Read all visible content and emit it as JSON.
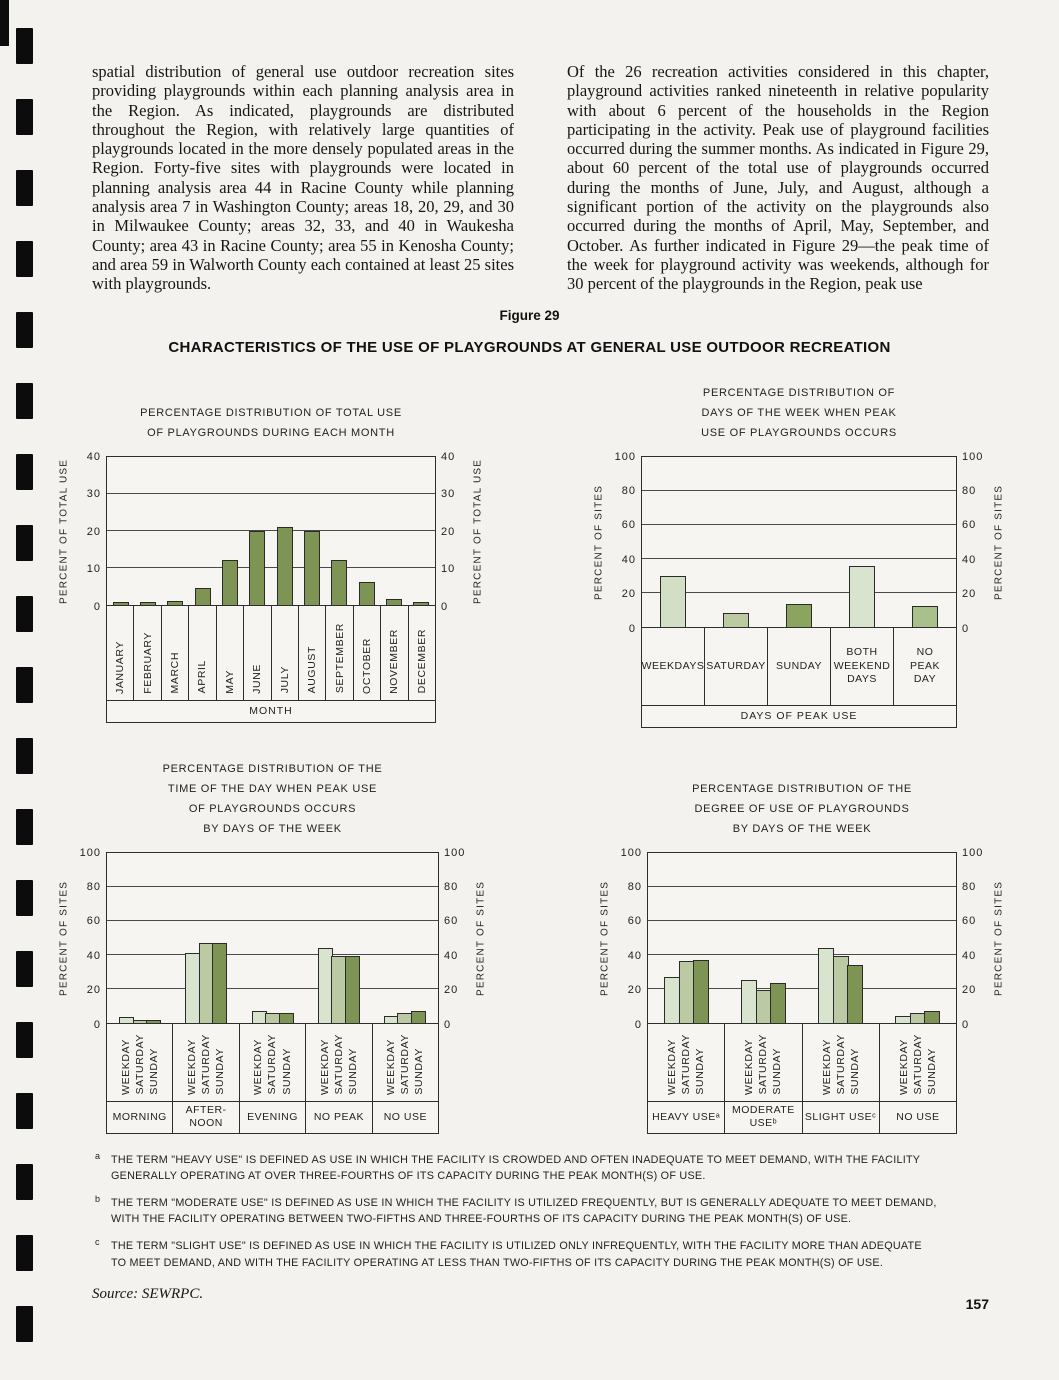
{
  "page": {
    "columns": {
      "left": "spatial distribution of general use outdoor recreation sites providing playgrounds within each planning analysis area in the Region. As indicated, playgrounds are distributed throughout the Region, with relatively large quantities of playgrounds located in the more densely populated areas in the Region. Forty-five sites with playgrounds were located in planning analysis area 44 in Racine County while planning analysis area 7 in Washington County; areas 18, 20, 29, and 30 in Milwaukee County; areas 32, 33, and 40 in Waukesha County; area 43 in Racine County; area 55 in Kenosha County; and area 59 in Walworth County each contained at least 25 sites with playgrounds.",
      "right": "Of the 26 recreation activities considered in this chapter, playground activities ranked nineteenth in relative popularity with about 6 percent of the households in the Region participating in the activity. Peak use of playground facilities occurred during the summer months. As indicated in Figure 29, about 60 percent of the total use of playgrounds occurred during the months of June, July, and August, although a significant portion of the activity on the playgrounds also occurred during the months of April, May, September, and October. As further indicated in Figure 29—the peak time of the week for playground activity was weekends, although for 30 percent of the playgrounds in the Region, peak use"
    },
    "figure_label": "Figure 29",
    "figure_title": "CHARACTERISTICS OF THE USE OF PLAYGROUNDS AT GENERAL USE OUTDOOR RECREATION",
    "footnotes": [
      {
        "marker": "a",
        "text": "THE TERM \"HEAVY USE\" IS DEFINED AS USE IN WHICH THE FACILITY IS CROWDED AND OFTEN INADEQUATE TO MEET DEMAND, WITH THE FACILITY GENERALLY OPERATING AT OVER THREE-FOURTHS OF ITS CAPACITY DURING THE PEAK MONTH(S) OF USE."
      },
      {
        "marker": "b",
        "text": "THE TERM \"MODERATE USE\" IS DEFINED AS USE IN WHICH THE FACILITY IS UTILIZED FREQUENTLY, BUT IS GENERALLY ADEQUATE TO MEET DEMAND, WITH THE FACILITY OPERATING BETWEEN TWO-FIFTHS AND THREE-FOURTHS OF ITS CAPACITY DURING THE PEAK MONTH(S) OF USE."
      },
      {
        "marker": "c",
        "text": "THE TERM \"SLIGHT USE\" IS DEFINED AS USE IN WHICH THE FACILITY IS UTILIZED ONLY INFREQUENTLY, WITH THE FACILITY MORE THAN ADEQUATE TO MEET DEMAND, AND WITH THE FACILITY OPERATING AT LESS THAN TWO-FIFTHS OF ITS CAPACITY DURING THE PEAK MONTH(S) OF USE."
      }
    ],
    "source": "Source: SEWRPC.",
    "page_number": "157"
  },
  "colors": {
    "page_background": "#f3f2ee",
    "bar_dark_green": "#7d9454",
    "bar_medium_green": "#bccaa4",
    "bar_light_green": "#d9e4cf",
    "axis_ink": "#2e2e2e"
  },
  "chart_data": [
    {
      "type": "bar",
      "title": "PERCENTAGE DISTRIBUTION OF TOTAL USE\nOF PLAYGROUNDS DURING EACH MONTH",
      "categories": [
        "JANUARY",
        "FEBRUARY",
        "MARCH",
        "APRIL",
        "MAY",
        "JUNE",
        "JULY",
        "AUGUST",
        "SEPTEMBER",
        "OCTOBER",
        "NOVEMBER",
        "DECEMBER"
      ],
      "values": [
        0.5,
        0.5,
        1,
        4.5,
        12,
        20,
        21,
        20,
        12,
        6,
        1.5,
        0.5
      ],
      "bar_color": "#7d9454",
      "ylabel": "PERCENT OF TOTAL USE",
      "xlabel": "MONTH",
      "ylim": [
        0,
        40
      ],
      "ytick": 10,
      "rotate_xlabels": true,
      "grid": true,
      "legend_position": "none"
    },
    {
      "type": "bar",
      "title": "PERCENTAGE DISTRIBUTION OF\nDAYS OF THE WEEK WHEN PEAK\nUSE OF PLAYGROUNDS OCCURS",
      "categories": [
        "WEEKDAYS",
        "SATURDAY",
        "SUNDAY",
        "BOTH\nWEEKEND\nDAYS",
        "NO\nPEAK\nDAY"
      ],
      "values": [
        30,
        8,
        13.5,
        35.5,
        12
      ],
      "bar_colors": [
        "#d3dfc4",
        "#bccaa4",
        "#89a55e",
        "#d9e4cf",
        "#a9bf8c"
      ],
      "ylabel": "PERCENT OF SITES",
      "xlabel": "DAYS OF PEAK USE",
      "ylim": [
        0,
        100
      ],
      "ytick": 20,
      "rotate_xlabels": false,
      "grid": true,
      "legend_position": "none"
    },
    {
      "type": "bar",
      "title": "PERCENTAGE DISTRIBUTION OF THE\nTIME OF THE DAY WHEN PEAK USE\nOF PLAYGROUNDS OCCURS\nBY DAYS OF THE WEEK",
      "categories": [
        "MORNING",
        "AFTER-\nNOON",
        "EVENING",
        "NO PEAK",
        "NO USE"
      ],
      "series": [
        {
          "name": "WEEKDAY",
          "color": "#d9e4cf",
          "values": [
            3.5,
            41,
            7,
            44,
            4
          ]
        },
        {
          "name": "SATURDAY",
          "color": "#bccaa4",
          "values": [
            1.5,
            47,
            5.5,
            39,
            5.5
          ]
        },
        {
          "name": "SUNDAY",
          "color": "#7d9454",
          "values": [
            1,
            47,
            5.5,
            39,
            7
          ]
        }
      ],
      "ylabel": "PERCENT OF SITES",
      "xlabel": null,
      "ylim": [
        0,
        100
      ],
      "ytick": 20,
      "grid": true,
      "legend_position": "none"
    },
    {
      "type": "bar",
      "title": "PERCENTAGE DISTRIBUTION OF THE\nDEGREE OF USE OF PLAYGROUNDS\nBY DAYS OF THE WEEK",
      "categories": [
        "HEAVY USEᵃ",
        "MODERATE\nUSEᵇ",
        "SLIGHT USEᶜ",
        "NO USE"
      ],
      "series": [
        {
          "name": "WEEKDAY",
          "color": "#d9e4cf",
          "values": [
            27,
            25,
            44,
            4
          ]
        },
        {
          "name": "SATURDAY",
          "color": "#bccaa4",
          "values": [
            36,
            19,
            39,
            5.5
          ]
        },
        {
          "name": "SUNDAY",
          "color": "#7d9454",
          "values": [
            37,
            23,
            34,
            7
          ]
        }
      ],
      "ylabel": "PERCENT OF SITES",
      "xlabel": null,
      "ylim": [
        0,
        100
      ],
      "ytick": 20,
      "grid": true,
      "legend_position": "none"
    }
  ]
}
